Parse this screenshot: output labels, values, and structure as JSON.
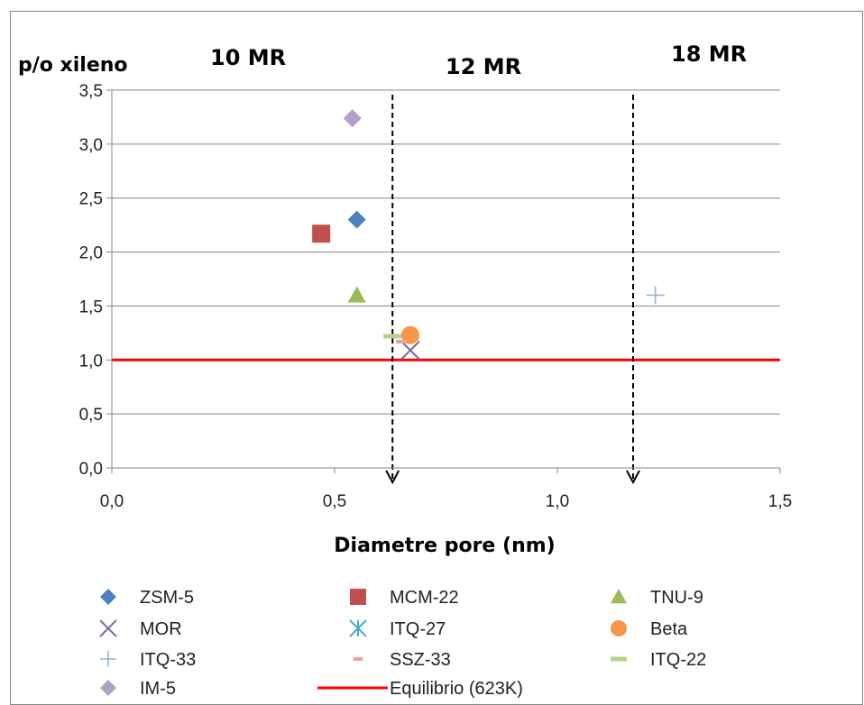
{
  "chart_data": {
    "type": "scatter",
    "ylabel": "p/o xileno",
    "xlabel": "Diametre pore (nm)",
    "xlim": [
      0,
      1.5
    ],
    "ylim": [
      0,
      3.5
    ],
    "x_ticks": [
      "0,0",
      "0,5",
      "1,0",
      "1,5"
    ],
    "y_ticks": [
      "0,0",
      "0,5",
      "1,0",
      "1,5",
      "2,0",
      "2,5",
      "3,0",
      "3,5"
    ],
    "grid": "horizontal",
    "legend_position": "bottom",
    "region_labels": [
      "10 MR",
      "12 MR",
      "18 MR"
    ],
    "boundaries_x": [
      0.63,
      1.17
    ],
    "series": [
      {
        "name": "ZSM-5",
        "marker": "diamond",
        "color": "#4F81BD",
        "x": [
          0.55
        ],
        "y": [
          2.3
        ]
      },
      {
        "name": "MCM-22",
        "marker": "square",
        "color": "#C0504D",
        "x": [
          0.47
        ],
        "y": [
          2.17
        ]
      },
      {
        "name": "TNU-9",
        "marker": "triangle",
        "color": "#9BBB59",
        "x": [
          0.55
        ],
        "y": [
          1.6
        ]
      },
      {
        "name": "MOR",
        "marker": "x",
        "color": "#8064A2",
        "x": [
          0.67
        ],
        "y": [
          1.09
        ]
      },
      {
        "name": "ITQ-27",
        "marker": "star",
        "color": "#4BACC6",
        "x": [],
        "y": []
      },
      {
        "name": "Beta",
        "marker": "circle",
        "color": "#F79646",
        "x": [
          0.67
        ],
        "y": [
          1.23
        ]
      },
      {
        "name": "ITQ-33",
        "marker": "plus",
        "color": "#95B3D7",
        "x": [
          1.22
        ],
        "y": [
          1.6
        ]
      },
      {
        "name": "SSZ-33",
        "marker": "dash",
        "color": "#E6A5A4",
        "x": [
          0.65
        ],
        "y": [
          1.17
        ]
      },
      {
        "name": "ITQ-22",
        "marker": "longdash",
        "color": "#B7D18A",
        "x": [
          0.63
        ],
        "y": [
          1.22
        ]
      },
      {
        "name": "IM-5",
        "marker": "diamond",
        "color": "#B1A0C7",
        "x": [
          0.54
        ],
        "y": [
          3.24
        ]
      },
      {
        "name": "Equilibrio (623K)",
        "marker": "line",
        "color": "#FF0000",
        "x": [
          0,
          1.5
        ],
        "y": [
          1.0,
          1.0
        ]
      }
    ]
  }
}
